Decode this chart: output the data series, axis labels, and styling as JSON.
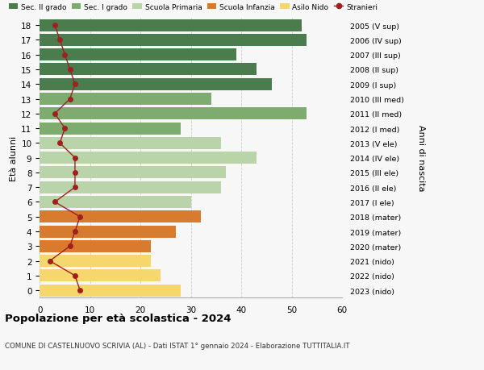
{
  "ages": [
    18,
    17,
    16,
    15,
    14,
    13,
    12,
    11,
    10,
    9,
    8,
    7,
    6,
    5,
    4,
    3,
    2,
    1,
    0
  ],
  "bar_values": [
    52,
    53,
    39,
    43,
    46,
    34,
    53,
    28,
    36,
    43,
    37,
    36,
    30,
    32,
    27,
    22,
    22,
    24,
    28
  ],
  "stranieri": [
    3,
    4,
    5,
    6,
    7,
    6,
    3,
    5,
    4,
    7,
    7,
    7,
    3,
    8,
    7,
    6,
    2,
    7,
    8
  ],
  "bar_colors": [
    "#4a7c4e",
    "#4a7c4e",
    "#4a7c4e",
    "#4a7c4e",
    "#4a7c4e",
    "#7eab6e",
    "#7eab6e",
    "#7eab6e",
    "#b8d4a8",
    "#b8d4a8",
    "#b8d4a8",
    "#b8d4a8",
    "#b8d4a8",
    "#d97b2e",
    "#d97b2e",
    "#d97b2e",
    "#f5d76e",
    "#f5d76e",
    "#f5d76e"
  ],
  "right_labels": [
    "2005 (V sup)",
    "2006 (IV sup)",
    "2007 (III sup)",
    "2008 (II sup)",
    "2009 (I sup)",
    "2010 (III med)",
    "2011 (II med)",
    "2012 (I med)",
    "2013 (V ele)",
    "2014 (IV ele)",
    "2015 (III ele)",
    "2016 (II ele)",
    "2017 (I ele)",
    "2018 (mater)",
    "2019 (mater)",
    "2020 (mater)",
    "2021 (nido)",
    "2022 (nido)",
    "2023 (nido)"
  ],
  "legend_labels": [
    "Sec. II grado",
    "Sec. I grado",
    "Scuola Primaria",
    "Scuola Infanzia",
    "Asilo Nido",
    "Stranieri"
  ],
  "legend_colors": [
    "#4a7c4e",
    "#7eab6e",
    "#b8d4a8",
    "#d97b2e",
    "#f5d76e",
    "#a02020"
  ],
  "ylabel_left": "Età alunni",
  "ylabel_right": "Anni di nascita",
  "title": "Popolazione per età scolastica - 2024",
  "subtitle": "COMUNE DI CASTELNUOVO SCRIVIA (AL) - Dati ISTAT 1° gennaio 2024 - Elaborazione TUTTITALIA.IT",
  "xlim": [
    0,
    60
  ],
  "xticks": [
    0,
    10,
    20,
    30,
    40,
    50,
    60
  ],
  "bg_color": "#f7f7f7",
  "grid_color": "#cccccc",
  "stranieri_color": "#a02020"
}
